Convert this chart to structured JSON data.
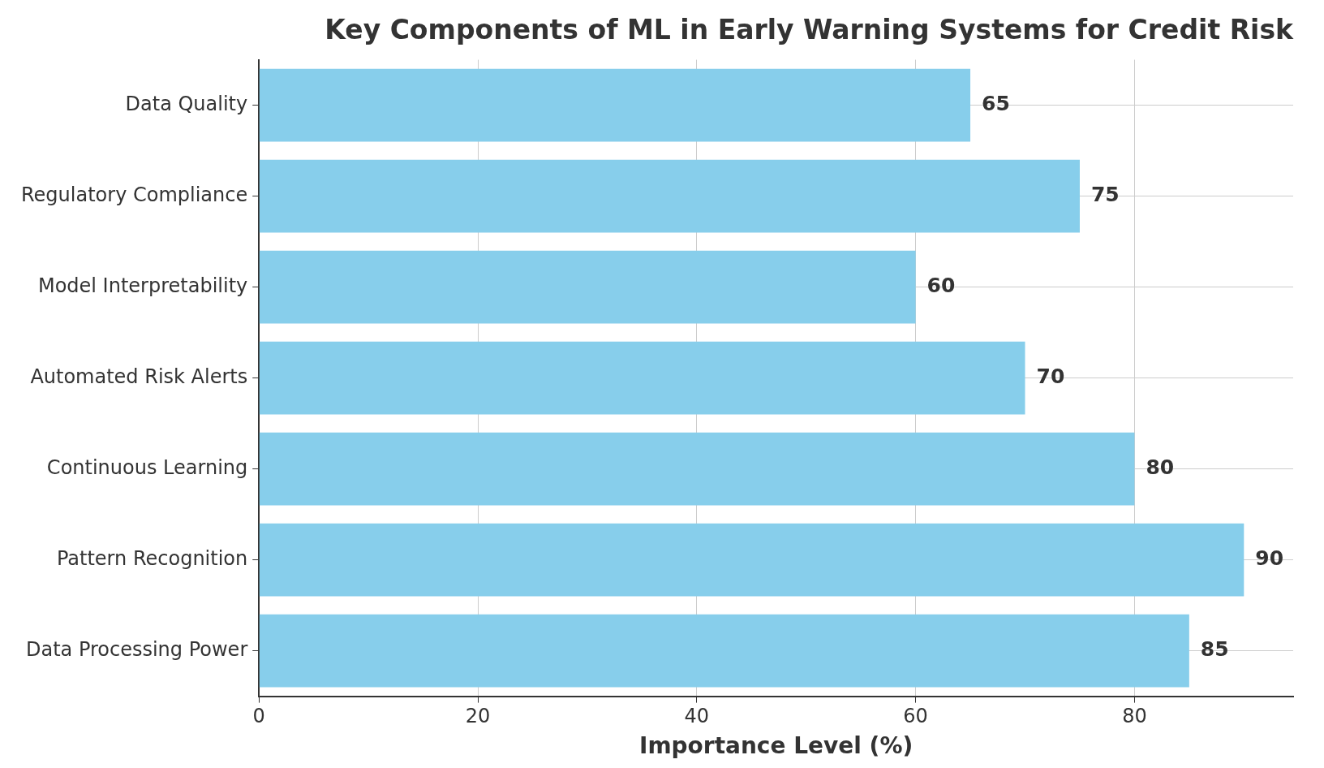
{
  "chart_data": {
    "type": "bar",
    "orientation": "horizontal",
    "title": "Key Components of ML in Early Warning Systems for Credit Risk",
    "xlabel": "Importance Level (%)",
    "categories": [
      "Data Quality",
      "Regulatory Compliance",
      "Model Interpretability",
      "Automated Risk Alerts",
      "Continuous Learning",
      "Pattern Recognition",
      "Data Processing Power"
    ],
    "values": [
      65,
      75,
      60,
      70,
      80,
      90,
      85
    ],
    "color": "#87ceeb",
    "xlim": [
      0,
      94.5
    ],
    "xticks": [
      0,
      20,
      40,
      60,
      80
    ],
    "grid": true,
    "data_labels": true
  }
}
